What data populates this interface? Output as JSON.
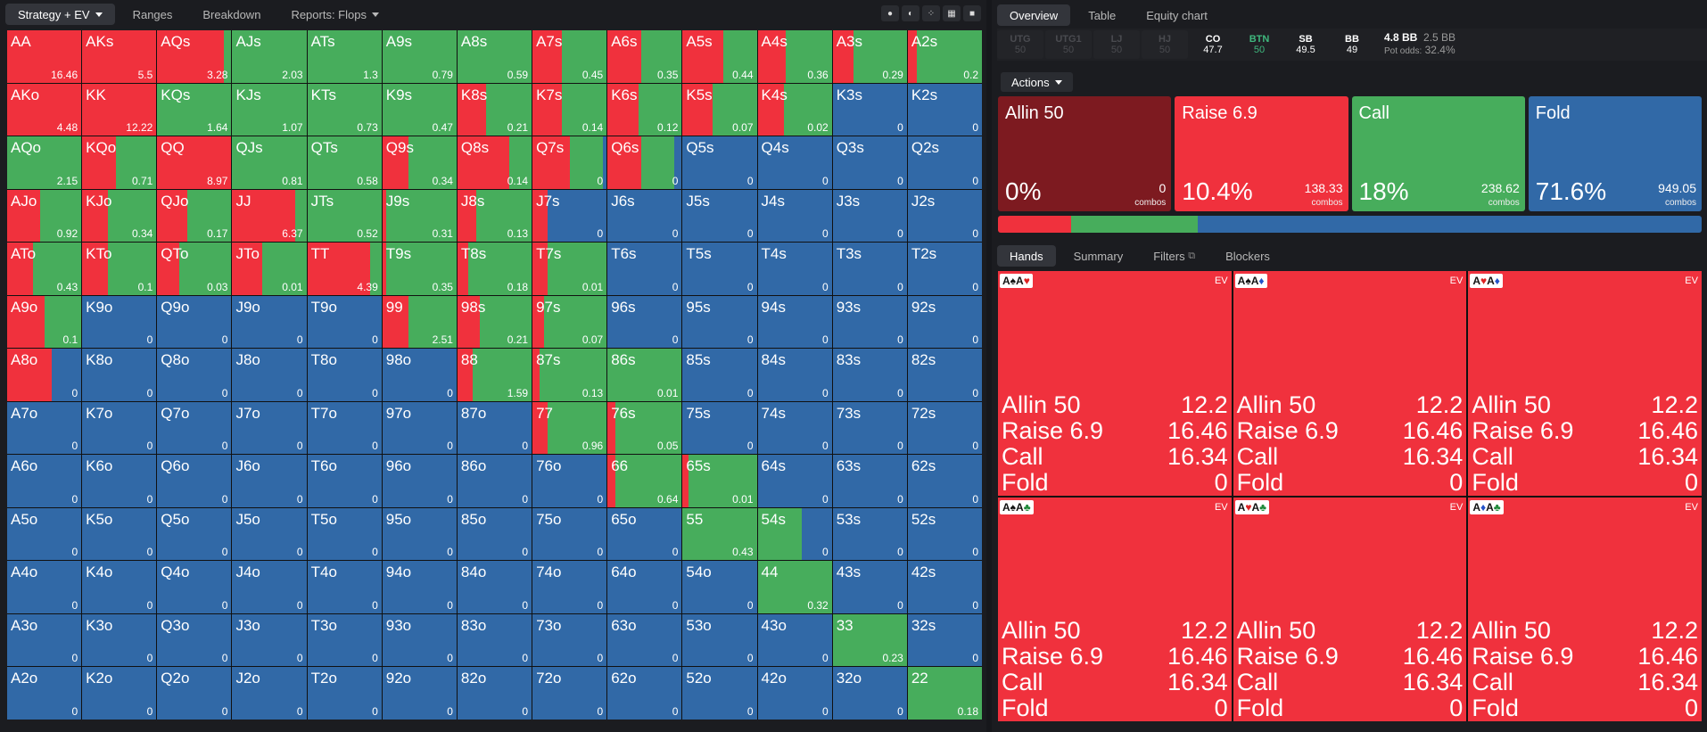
{
  "topbar": {
    "tabs": [
      "Strategy + EV",
      "Ranges",
      "Breakdown",
      "Reports: Flops"
    ],
    "view_icons": [
      "●",
      "◐",
      "⁘",
      "▦",
      "■"
    ]
  },
  "colors": {
    "allin": "#7d1a20",
    "raise": "#f0313d",
    "call": "#47ad5c",
    "fold": "#3169a7"
  },
  "grid": [
    [
      "AA",
      100,
      0,
      "16.46"
    ],
    [
      "AKs",
      100,
      0,
      "5.5"
    ],
    [
      "AQs",
      90,
      10,
      "3.28"
    ],
    [
      "AJs",
      0,
      100,
      "2.03"
    ],
    [
      "ATs",
      0,
      100,
      "1.3"
    ],
    [
      "A9s",
      0,
      100,
      "0.79"
    ],
    [
      "A8s",
      0,
      100,
      "0.59"
    ],
    [
      "A7s",
      40,
      60,
      "0.45"
    ],
    [
      "A6s",
      45,
      55,
      "0.35"
    ],
    [
      "A5s",
      55,
      45,
      "0.44"
    ],
    [
      "A4s",
      38,
      62,
      "0.36"
    ],
    [
      "A3s",
      28,
      72,
      "0.29"
    ],
    [
      "A2s",
      12,
      88,
      "0.2"
    ],
    [
      "AKo",
      100,
      0,
      "4.48"
    ],
    [
      "KK",
      100,
      0,
      "12.22"
    ],
    [
      "KQs",
      0,
      100,
      "1.64"
    ],
    [
      "KJs",
      0,
      100,
      "1.07"
    ],
    [
      "KTs",
      0,
      100,
      "0.73"
    ],
    [
      "K9s",
      0,
      100,
      "0.47"
    ],
    [
      "K8s",
      38,
      62,
      "0.21"
    ],
    [
      "K7s",
      40,
      60,
      "0.14"
    ],
    [
      "K6s",
      42,
      58,
      "0.12"
    ],
    [
      "K5s",
      40,
      60,
      "0.07"
    ],
    [
      "K4s",
      35,
      65,
      "0.02"
    ],
    [
      "K3s",
      0,
      0,
      "0"
    ],
    [
      "K2s",
      0,
      0,
      "0"
    ],
    [
      "AQo",
      0,
      100,
      "2.15"
    ],
    [
      "KQo",
      45,
      55,
      "0.71"
    ],
    [
      "QQ",
      100,
      0,
      "8.97"
    ],
    [
      "QJs",
      0,
      100,
      "0.81"
    ],
    [
      "QTs",
      0,
      100,
      "0.58"
    ],
    [
      "Q9s",
      35,
      65,
      "0.34"
    ],
    [
      "Q8s",
      70,
      30,
      "0.14"
    ],
    [
      "Q7s",
      50,
      45,
      "0"
    ],
    [
      "Q6s",
      45,
      45,
      "0"
    ],
    [
      "Q5s",
      0,
      0,
      "0"
    ],
    [
      "Q4s",
      0,
      0,
      "0"
    ],
    [
      "Q3s",
      0,
      0,
      "0"
    ],
    [
      "Q2s",
      0,
      0,
      "0"
    ],
    [
      "AJo",
      45,
      55,
      "0.92"
    ],
    [
      "KJo",
      35,
      65,
      "0.34"
    ],
    [
      "QJo",
      40,
      60,
      "0.17"
    ],
    [
      "JJ",
      85,
      15,
      "6.37"
    ],
    [
      "JTs",
      0,
      100,
      "0.52"
    ],
    [
      "J9s",
      5,
      95,
      "0.31"
    ],
    [
      "J8s",
      25,
      75,
      "0.13"
    ],
    [
      "J7s",
      20,
      0,
      "0"
    ],
    [
      "J6s",
      0,
      0,
      "0"
    ],
    [
      "J5s",
      0,
      0,
      "0"
    ],
    [
      "J4s",
      0,
      0,
      "0"
    ],
    [
      "J3s",
      0,
      0,
      "0"
    ],
    [
      "J2s",
      0,
      0,
      "0"
    ],
    [
      "ATo",
      35,
      65,
      "0.43"
    ],
    [
      "KTo",
      35,
      65,
      "0.1"
    ],
    [
      "QTo",
      30,
      70,
      "0.03"
    ],
    [
      "JTo",
      40,
      60,
      "0.01"
    ],
    [
      "TT",
      85,
      15,
      "4.39"
    ],
    [
      "T9s",
      5,
      95,
      "0.35"
    ],
    [
      "T8s",
      15,
      85,
      "0.18"
    ],
    [
      "T7s",
      20,
      80,
      "0.01"
    ],
    [
      "T6s",
      0,
      0,
      "0"
    ],
    [
      "T5s",
      0,
      0,
      "0"
    ],
    [
      "T4s",
      0,
      0,
      "0"
    ],
    [
      "T3s",
      0,
      0,
      "0"
    ],
    [
      "T2s",
      0,
      0,
      "0"
    ],
    [
      "A9o",
      50,
      50,
      "0.1"
    ],
    [
      "K9o",
      0,
      0,
      "0"
    ],
    [
      "Q9o",
      0,
      0,
      "0"
    ],
    [
      "J9o",
      0,
      0,
      "0"
    ],
    [
      "T9o",
      0,
      0,
      "0"
    ],
    [
      "99",
      35,
      65,
      "2.51"
    ],
    [
      "98s",
      30,
      70,
      "0.21"
    ],
    [
      "97s",
      15,
      85,
      "0.07"
    ],
    [
      "96s",
      0,
      0,
      "0"
    ],
    [
      "95s",
      0,
      0,
      "0"
    ],
    [
      "94s",
      0,
      0,
      "0"
    ],
    [
      "93s",
      0,
      0,
      "0"
    ],
    [
      "92s",
      0,
      0,
      "0"
    ],
    [
      "A8o",
      60,
      0,
      "0"
    ],
    [
      "K8o",
      0,
      0,
      "0"
    ],
    [
      "Q8o",
      0,
      0,
      "0"
    ],
    [
      "J8o",
      0,
      0,
      "0"
    ],
    [
      "T8o",
      0,
      0,
      "0"
    ],
    [
      "98o",
      0,
      0,
      "0"
    ],
    [
      "88",
      20,
      80,
      "1.59"
    ],
    [
      "87s",
      10,
      90,
      "0.13"
    ],
    [
      "86s",
      0,
      100,
      "0.01"
    ],
    [
      "85s",
      0,
      0,
      "0"
    ],
    [
      "84s",
      0,
      0,
      "0"
    ],
    [
      "83s",
      0,
      0,
      "0"
    ],
    [
      "82s",
      0,
      0,
      "0"
    ],
    [
      "A7o",
      0,
      0,
      "0"
    ],
    [
      "K7o",
      0,
      0,
      "0"
    ],
    [
      "Q7o",
      0,
      0,
      "0"
    ],
    [
      "J7o",
      0,
      0,
      "0"
    ],
    [
      "T7o",
      0,
      0,
      "0"
    ],
    [
      "97o",
      0,
      0,
      "0"
    ],
    [
      "87o",
      0,
      0,
      "0"
    ],
    [
      "77",
      20,
      80,
      "0.96"
    ],
    [
      "76s",
      10,
      90,
      "0.05"
    ],
    [
      "75s",
      0,
      0,
      "0"
    ],
    [
      "74s",
      0,
      0,
      "0"
    ],
    [
      "73s",
      0,
      0,
      "0"
    ],
    [
      "72s",
      0,
      0,
      "0"
    ],
    [
      "A6o",
      0,
      0,
      "0"
    ],
    [
      "K6o",
      0,
      0,
      "0"
    ],
    [
      "Q6o",
      0,
      0,
      "0"
    ],
    [
      "J6o",
      0,
      0,
      "0"
    ],
    [
      "T6o",
      0,
      0,
      "0"
    ],
    [
      "96o",
      0,
      0,
      "0"
    ],
    [
      "86o",
      0,
      0,
      "0"
    ],
    [
      "76o",
      0,
      0,
      "0"
    ],
    [
      "66",
      10,
      90,
      "0.64"
    ],
    [
      "65s",
      8,
      92,
      "0.01"
    ],
    [
      "64s",
      0,
      0,
      "0"
    ],
    [
      "63s",
      0,
      0,
      "0"
    ],
    [
      "62s",
      0,
      0,
      "0"
    ],
    [
      "A5o",
      0,
      0,
      "0"
    ],
    [
      "K5o",
      0,
      0,
      "0"
    ],
    [
      "Q5o",
      0,
      0,
      "0"
    ],
    [
      "J5o",
      0,
      0,
      "0"
    ],
    [
      "T5o",
      0,
      0,
      "0"
    ],
    [
      "95o",
      0,
      0,
      "0"
    ],
    [
      "85o",
      0,
      0,
      "0"
    ],
    [
      "75o",
      0,
      0,
      "0"
    ],
    [
      "65o",
      0,
      0,
      "0"
    ],
    [
      "55",
      0,
      100,
      "0.43"
    ],
    [
      "54s",
      0,
      60,
      "0"
    ],
    [
      "53s",
      0,
      0,
      "0"
    ],
    [
      "52s",
      0,
      0,
      "0"
    ],
    [
      "A4o",
      0,
      0,
      "0"
    ],
    [
      "K4o",
      0,
      0,
      "0"
    ],
    [
      "Q4o",
      0,
      0,
      "0"
    ],
    [
      "J4o",
      0,
      0,
      "0"
    ],
    [
      "T4o",
      0,
      0,
      "0"
    ],
    [
      "94o",
      0,
      0,
      "0"
    ],
    [
      "84o",
      0,
      0,
      "0"
    ],
    [
      "74o",
      0,
      0,
      "0"
    ],
    [
      "64o",
      0,
      0,
      "0"
    ],
    [
      "54o",
      0,
      0,
      "0"
    ],
    [
      "44",
      0,
      100,
      "0.32"
    ],
    [
      "43s",
      0,
      0,
      "0"
    ],
    [
      "42s",
      0,
      0,
      "0"
    ],
    [
      "A3o",
      0,
      0,
      "0"
    ],
    [
      "K3o",
      0,
      0,
      "0"
    ],
    [
      "Q3o",
      0,
      0,
      "0"
    ],
    [
      "J3o",
      0,
      0,
      "0"
    ],
    [
      "T3o",
      0,
      0,
      "0"
    ],
    [
      "93o",
      0,
      0,
      "0"
    ],
    [
      "83o",
      0,
      0,
      "0"
    ],
    [
      "73o",
      0,
      0,
      "0"
    ],
    [
      "63o",
      0,
      0,
      "0"
    ],
    [
      "53o",
      0,
      0,
      "0"
    ],
    [
      "43o",
      0,
      0,
      "0"
    ],
    [
      "33",
      0,
      100,
      "0.23"
    ],
    [
      "32s",
      0,
      0,
      "0"
    ],
    [
      "A2o",
      0,
      0,
      "0"
    ],
    [
      "K2o",
      0,
      0,
      "0"
    ],
    [
      "Q2o",
      0,
      0,
      "0"
    ],
    [
      "J2o",
      0,
      0,
      "0"
    ],
    [
      "T2o",
      0,
      0,
      "0"
    ],
    [
      "92o",
      0,
      0,
      "0"
    ],
    [
      "82o",
      0,
      0,
      "0"
    ],
    [
      "72o",
      0,
      0,
      "0"
    ],
    [
      "62o",
      0,
      0,
      "0"
    ],
    [
      "52o",
      0,
      0,
      "0"
    ],
    [
      "42o",
      0,
      0,
      "0"
    ],
    [
      "32o",
      0,
      0,
      "0"
    ],
    [
      "22",
      0,
      100,
      "0.18"
    ]
  ],
  "right": {
    "tabs": [
      "Overview",
      "Table",
      "Equity chart"
    ],
    "positions": [
      {
        "name": "UTG",
        "stack": "50"
      },
      {
        "name": "UTG1",
        "stack": "50"
      },
      {
        "name": "LJ",
        "stack": "50"
      },
      {
        "name": "HJ",
        "stack": "50"
      },
      {
        "name": "CO",
        "stack": "47.7"
      },
      {
        "name": "BTN",
        "stack": "50"
      },
      {
        "name": "SB",
        "stack": "49.5"
      },
      {
        "name": "BB",
        "stack": "49"
      }
    ],
    "pot": {
      "bb": "4.8 BB",
      "call": "2.5 BB",
      "odds_label": "Pot odds:",
      "odds": "32.4%"
    },
    "actions_label": "Actions",
    "actions": [
      {
        "name": "Allin 50",
        "pct": "0%",
        "combos": "0",
        "combos_label": "combos",
        "freq": 0
      },
      {
        "name": "Raise 6.9",
        "pct": "10.4%",
        "combos": "138.33",
        "combos_label": "combos",
        "freq": 10.4
      },
      {
        "name": "Call",
        "pct": "18%",
        "combos": "238.62",
        "combos_label": "combos",
        "freq": 18
      },
      {
        "name": "Fold",
        "pct": "71.6%",
        "combos": "949.05",
        "combos_label": "combos",
        "freq": 71.6
      }
    ],
    "bottom_tabs": [
      "Hands",
      "Summary",
      "Filters",
      "Blockers"
    ],
    "ev_label": "EV",
    "hand_cells": [
      {
        "cards": [
          [
            "A",
            "♠",
            "s"
          ],
          [
            "A",
            "♥",
            "h"
          ]
        ]
      },
      {
        "cards": [
          [
            "A",
            "♠",
            "s"
          ],
          [
            "A",
            "♦",
            "d"
          ]
        ]
      },
      {
        "cards": [
          [
            "A",
            "♥",
            "h"
          ],
          [
            "A",
            "♦",
            "d"
          ]
        ]
      },
      {
        "cards": [
          [
            "A",
            "♠",
            "s"
          ],
          [
            "A",
            "♣",
            "c"
          ]
        ]
      },
      {
        "cards": [
          [
            "A",
            "♥",
            "h"
          ],
          [
            "A",
            "♣",
            "c"
          ]
        ]
      },
      {
        "cards": [
          [
            "A",
            "♦",
            "d"
          ],
          [
            "A",
            "♣",
            "c"
          ]
        ]
      }
    ],
    "hand_rows": [
      [
        "Allin 50",
        "12.2"
      ],
      [
        "Raise 6.9",
        "16.46"
      ],
      [
        "Call",
        "16.34"
      ],
      [
        "Fold",
        "0"
      ]
    ]
  }
}
